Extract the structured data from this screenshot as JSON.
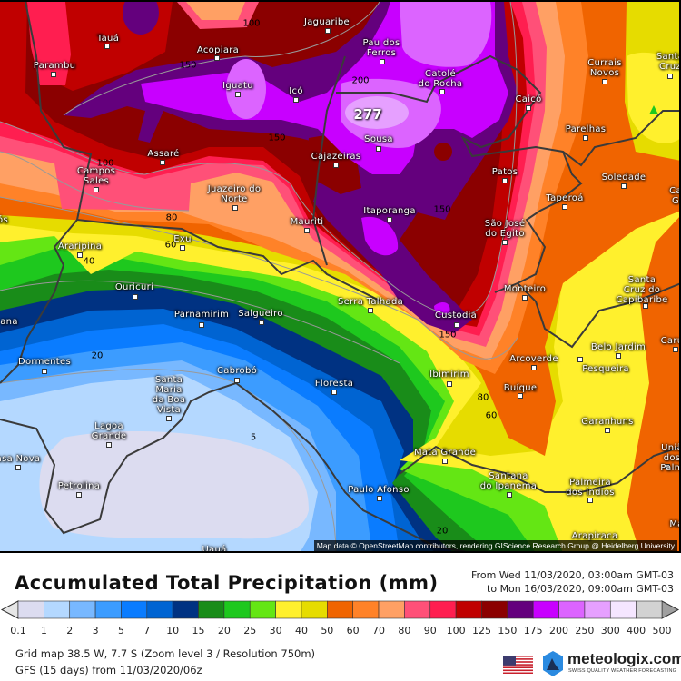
{
  "title": "Accumulated Total Precipitation (mm)",
  "period": {
    "from": "From Wed 11/03/2020, 03:00am GMT-03",
    "to": "to Mon 16/03/2020, 09:00am GMT-03"
  },
  "legend": {
    "labels": [
      "0.1",
      "1",
      "2",
      "3",
      "5",
      "7",
      "10",
      "15",
      "20",
      "25",
      "30",
      "40",
      "50",
      "60",
      "70",
      "80",
      "90",
      "100",
      "125",
      "150",
      "175",
      "200",
      "250",
      "300",
      "400",
      "500"
    ],
    "colors": [
      "#dcdcf0",
      "#b4d8ff",
      "#78b8ff",
      "#3c9cff",
      "#0a7cff",
      "#0064d2",
      "#003282",
      "#198c19",
      "#1ec81e",
      "#64e614",
      "#fff02d",
      "#e6dc00",
      "#f06400",
      "#ff8228",
      "#ffa064",
      "#ff5078",
      "#ff1e50",
      "#c00000",
      "#8b0000",
      "#64007d",
      "#c800ff",
      "#dc64ff",
      "#e6a0ff",
      "#f5e6ff",
      "#d2d2d2"
    ],
    "below_color": "#e6e6e6",
    "above_color": "#a0a0a0"
  },
  "footer": {
    "grid": "Grid map 38.5 W, 7.7 S (Zoom level 3 / Resolution 750m)",
    "model": "GFS (15 days) from 11/03/2020/06z"
  },
  "logo": {
    "name": "meteologix.com",
    "tagline": "SWISS QUALITY WEATHER FORECASTING",
    "flag": "us-flag-icon"
  },
  "map": {
    "attribution": "Map data © OpenStreetMap contributors, rendering GIScience Research Group @ Heidelberg University",
    "max_value": "277",
    "cities": [
      "Tauá",
      "Parambu",
      "Acopiara",
      "Jaguaribe",
      "Pau dos\nFerros",
      "Catolé\ndo Rocha",
      "Caicó",
      "Currais\nNovos",
      "Santa\nCruz",
      "Iguatu",
      "Icó",
      "Sousa",
      "Cajazeiras",
      "Assaré",
      "Campos\nSales",
      "Parelhas",
      "Patos",
      "Soledade",
      "Taperoá",
      "Juazeiro do\nNorte",
      "Mauriti",
      "Itaporanga",
      "São José\ndo Egito",
      "Araripina",
      "Exu",
      "ós",
      "Ca\nG",
      "Ouricuri",
      "Parnamirim",
      "Salgueiro",
      "ana",
      "Dormentes",
      "Cabrobó",
      "Floresta",
      "Santa\nMaria\nda Boa\nVista",
      "Lagoa\nGrande",
      "asa Nova",
      "Petrolina",
      "Uauá",
      "Serra Talhada",
      "Custódia",
      "Monteiro",
      "Santa\nCruz do\nCapibaribe",
      "Arcoverde",
      "Belo Jardim",
      "Pesqueira",
      "Caru",
      "Ibimirim",
      "Buíque",
      "Garanhuns",
      "Mata Grande",
      "Santana\ndo Ipanema",
      "Palmeira\ndos Índios",
      "Uniã\ndos Palm",
      "Paulo Afonso",
      "Arapiraca",
      "Ma"
    ],
    "contour_labels": [
      "100",
      "150",
      "150",
      "100",
      "80",
      "60",
      "40",
      "200",
      "150",
      "150",
      "80",
      "60",
      "20",
      "5",
      "20"
    ]
  }
}
